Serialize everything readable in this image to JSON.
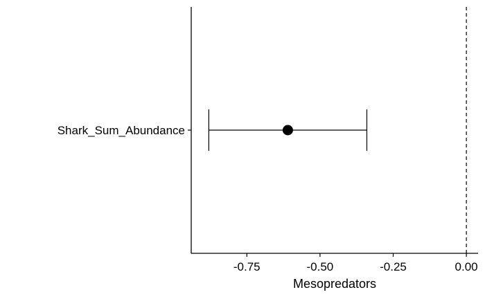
{
  "chart_data": {
    "type": "scatter",
    "title": "",
    "xlabel": "Mesopredators",
    "ylabel": "",
    "categories": [
      "Shark_Sum_Abundance"
    ],
    "points": [
      {
        "category": "Shark_Sum_Abundance",
        "estimate": -0.61,
        "lower": -0.88,
        "upper": -0.34
      }
    ],
    "xlim": [
      -0.94,
      0.04
    ],
    "x_ticks": [
      -0.75,
      -0.5,
      -0.25,
      0.0
    ],
    "x_tick_labels": [
      "-0.75",
      "-0.50",
      "-0.25",
      "0.00"
    ],
    "reference_line": {
      "x": 0.0,
      "style": "dashed"
    },
    "grid": false,
    "legend": "none",
    "colors": {
      "point": "#000000",
      "line": "#000000",
      "axis": "#000000"
    }
  }
}
